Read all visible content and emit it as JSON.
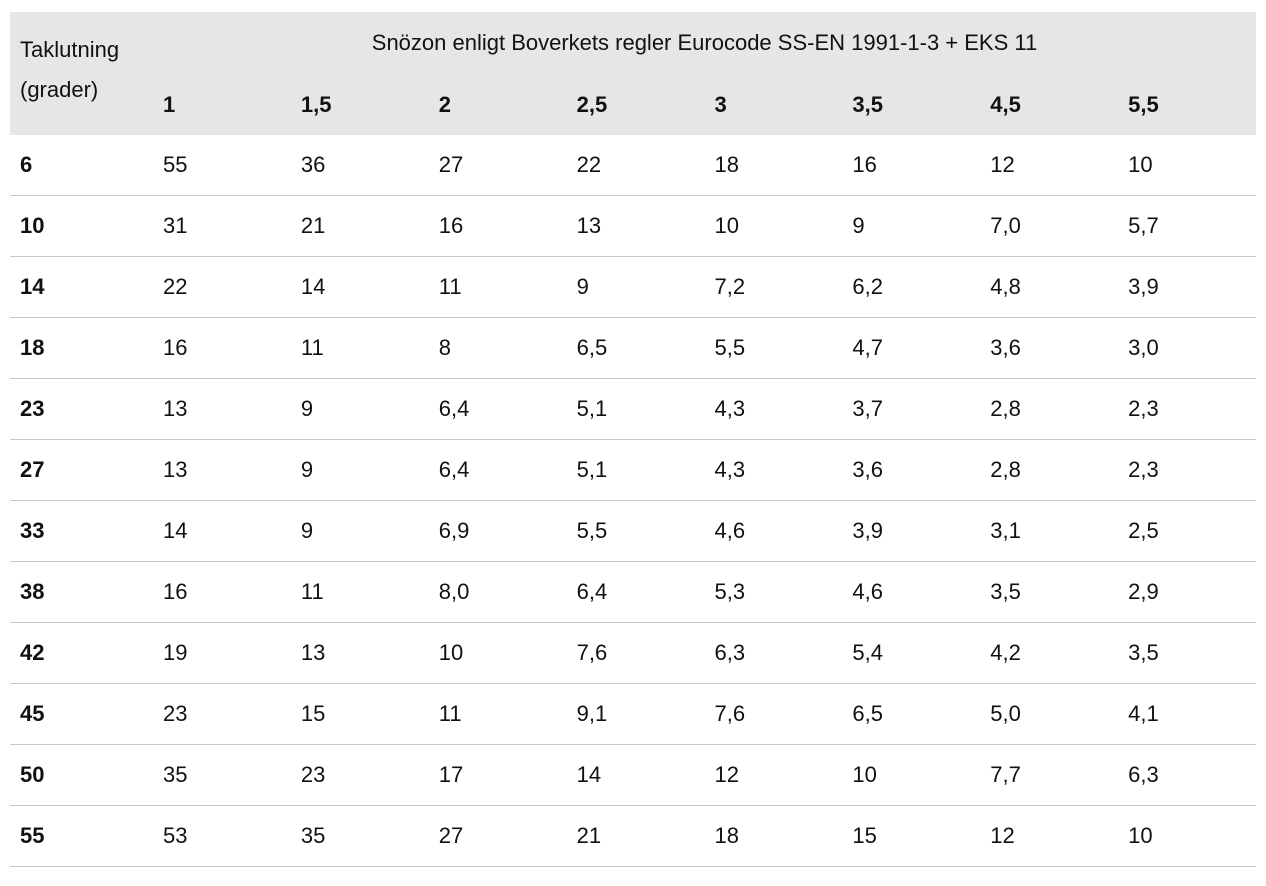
{
  "header": {
    "row_label": "Taklutning (grader)",
    "title": "Snözon enligt Boverkets regler Eurocode SS-EN 1991-1-3 + EKS 11",
    "zones": [
      "1",
      "1,5",
      "2",
      "2,5",
      "3",
      "3,5",
      "4,5",
      "5,5"
    ]
  },
  "table": {
    "rows": [
      [
        "6",
        "55",
        "36",
        "27",
        "22",
        "18",
        "16",
        "12",
        "10"
      ],
      [
        "10",
        "31",
        "21",
        "16",
        "13",
        "10",
        "9",
        "7,0",
        "5,7"
      ],
      [
        "14",
        "22",
        "14",
        "11",
        "9",
        "7,2",
        "6,2",
        "4,8",
        "3,9"
      ],
      [
        "18",
        "16",
        "11",
        "8",
        "6,5",
        "5,5",
        "4,7",
        "3,6",
        "3,0"
      ],
      [
        "23",
        "13",
        "9",
        "6,4",
        "5,1",
        "4,3",
        "3,7",
        "2,8",
        "2,3"
      ],
      [
        "27",
        "13",
        "9",
        "6,4",
        "5,1",
        "4,3",
        "3,6",
        "2,8",
        "2,3"
      ],
      [
        "33",
        "14",
        "9",
        "6,9",
        "5,5",
        "4,6",
        "3,9",
        "3,1",
        "2,5"
      ],
      [
        "38",
        "16",
        "11",
        "8,0",
        "6,4",
        "5,3",
        "4,6",
        "3,5",
        "2,9"
      ],
      [
        "42",
        "19",
        "13",
        "10",
        "7,6",
        "6,3",
        "5,4",
        "4,2",
        "3,5"
      ],
      [
        "45",
        "23",
        "15",
        "11",
        "9,1",
        "7,6",
        "6,5",
        "5,0",
        "4,1"
      ],
      [
        "50",
        "35",
        "23",
        "17",
        "14",
        "12",
        "10",
        "7,7",
        "6,3"
      ],
      [
        "55",
        "53",
        "35",
        "27",
        "21",
        "18",
        "15",
        "12",
        "10"
      ]
    ]
  }
}
